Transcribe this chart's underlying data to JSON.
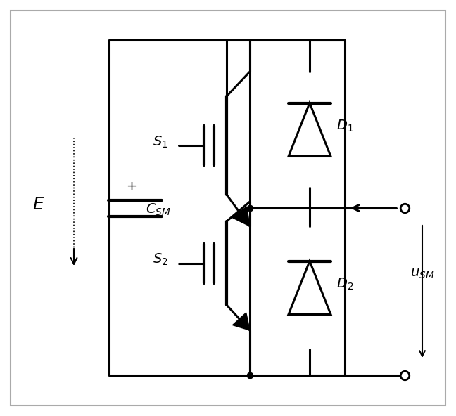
{
  "fig_width": 6.48,
  "fig_height": 5.92,
  "lw": 2.2,
  "lw_thick": 3.0,
  "lw_thin": 1.5
}
